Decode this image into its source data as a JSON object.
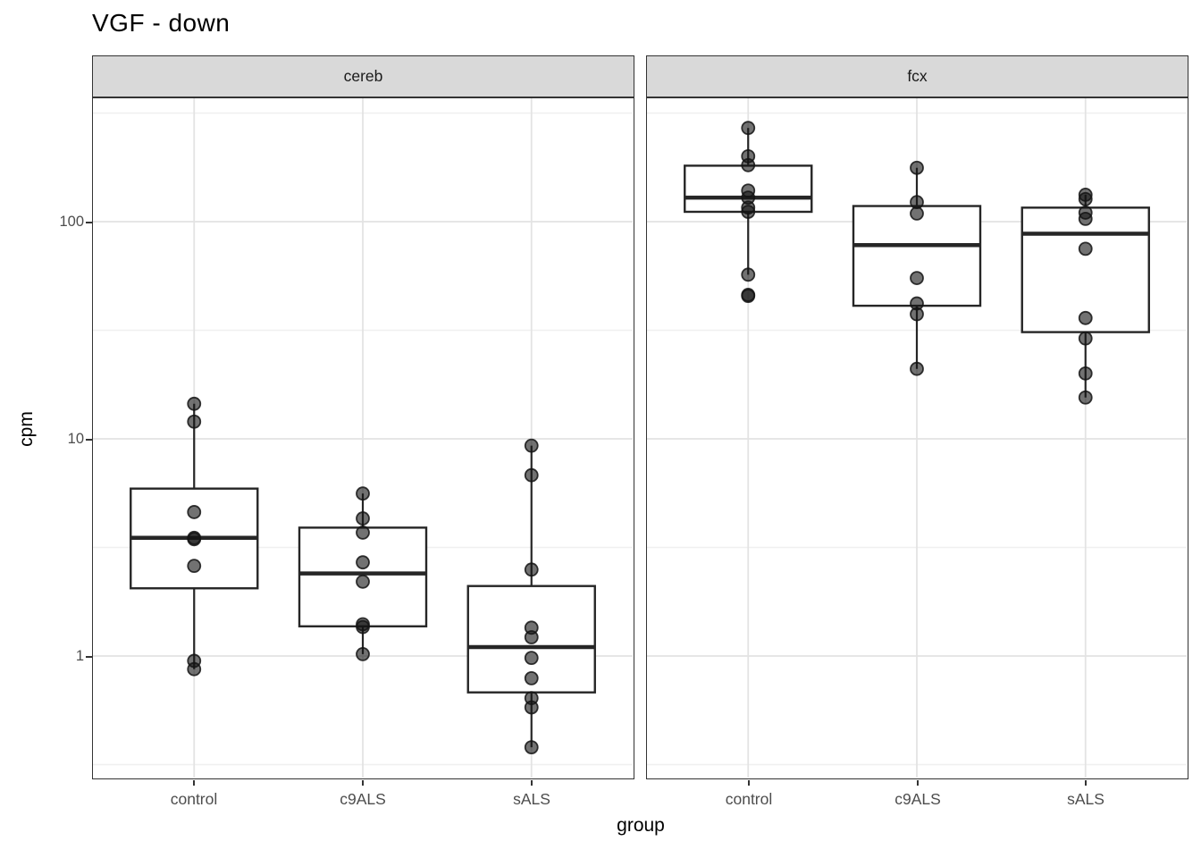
{
  "title": "VGF - down",
  "axes": {
    "y": {
      "title": "cpm",
      "scale": "log10",
      "ticks": [
        "100",
        "10",
        "1"
      ],
      "tick_values": [
        100,
        10,
        1
      ],
      "minor_values": [
        316.23,
        31.623,
        3.1623,
        0.31623
      ]
    },
    "x": {
      "title": "group",
      "categories": [
        "control",
        "c9ALS",
        "sALS"
      ]
    }
  },
  "style": {
    "strip_fill": "#d9d9d9",
    "panel_border": "#333333",
    "grid_major": "#e3e3e3",
    "grid_minor": "#f0f0f0",
    "box_stroke": "#262626",
    "box_fill": "#ffffff",
    "point_color": "#141414",
    "tick_text": "#4d4d4d"
  },
  "chart_data": {
    "type": "boxplot",
    "subtype": "faceted boxplot with overlaid jitter points, log10 y scale",
    "ylabel": "cpm",
    "xlabel": "group",
    "ylim": [
      0.27,
      372
    ],
    "categories": [
      "control",
      "c9ALS",
      "sALS"
    ],
    "facets": [
      {
        "label": "cereb",
        "groups": [
          {
            "name": "control",
            "box": {
              "q1": 2.05,
              "median": 3.5,
              "q3": 5.9,
              "whisker_low": 0.87,
              "whisker_high": 14.5
            },
            "points": [
              14.5,
              12.0,
              4.6,
              3.5,
              3.45,
              2.6,
              0.95,
              0.87
            ]
          },
          {
            "name": "c9ALS",
            "box": {
              "q1": 1.37,
              "median": 2.4,
              "q3": 3.9,
              "whisker_low": 1.02,
              "whisker_high": 5.6
            },
            "points": [
              5.6,
              4.3,
              3.7,
              2.7,
              2.2,
              1.4,
              1.36,
              1.02
            ]
          },
          {
            "name": "sALS",
            "box": {
              "q1": 0.68,
              "median": 1.1,
              "q3": 2.1,
              "whisker_low": 0.38,
              "whisker_high": 9.3
            },
            "points": [
              9.3,
              6.8,
              2.5,
              1.35,
              1.22,
              0.98,
              0.79,
              0.64,
              0.58,
              0.38
            ]
          }
        ]
      },
      {
        "label": "fcx",
        "groups": [
          {
            "name": "control",
            "box": {
              "q1": 111,
              "median": 129,
              "q3": 181,
              "whisker_low": 57,
              "whisker_high": 270
            },
            "points": [
              270,
              200,
              182,
              139,
              129,
              116,
              111,
              57,
              46,
              45.5
            ]
          },
          {
            "name": "c9ALS",
            "box": {
              "q1": 41,
              "median": 78,
              "q3": 118,
              "whisker_low": 21,
              "whisker_high": 177
            },
            "points": [
              177,
              123,
              109,
              55,
              42,
              37.5,
              21
            ]
          },
          {
            "name": "sALS",
            "box": {
              "q1": 31,
              "median": 88,
              "q3": 116,
              "whisker_low": 15.5,
              "whisker_high": 133
            },
            "points": [
              133,
              127,
              110,
              103,
              75,
              36,
              29,
              20,
              15.5
            ]
          }
        ]
      }
    ]
  }
}
